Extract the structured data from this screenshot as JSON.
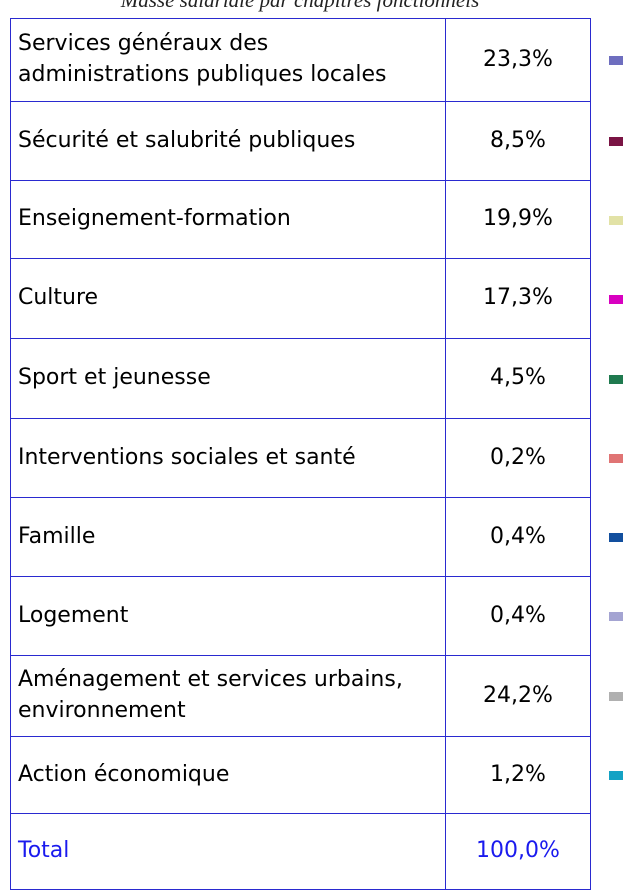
{
  "title": "Masse salariale par chapitres fonctionnels",
  "table": {
    "rows": [
      {
        "label": "Services généraux des administrations publiques locales",
        "value": "23,3%",
        "color": "#6e6ebf"
      },
      {
        "label": "Sécurité et salubrité publiques",
        "value": "8,5%",
        "color": "#7a1444"
      },
      {
        "label": "Enseignement-formation",
        "value": "19,9%",
        "color": "#e2e2a6"
      },
      {
        "label": "Culture",
        "value": "17,3%",
        "color": "#d800c0"
      },
      {
        "label": "Sport et jeunesse",
        "value": "4,5%",
        "color": "#1f7a4f"
      },
      {
        "label": "Interventions sociales et santé",
        "value": "0,2%",
        "color": "#e07474"
      },
      {
        "label": "Famille",
        "value": "0,4%",
        "color": "#124f9e"
      },
      {
        "label": "Logement",
        "value": "0,4%",
        "color": "#a4a4d2"
      },
      {
        "label": "Aménagement et services urbains, environnement",
        "value": "24,2%",
        "color": "#b0b0b0"
      },
      {
        "label": "Action économique",
        "value": "1,2%",
        "color": "#14a2c4"
      }
    ],
    "total": {
      "label": "Total",
      "value": "100,0%"
    }
  }
}
